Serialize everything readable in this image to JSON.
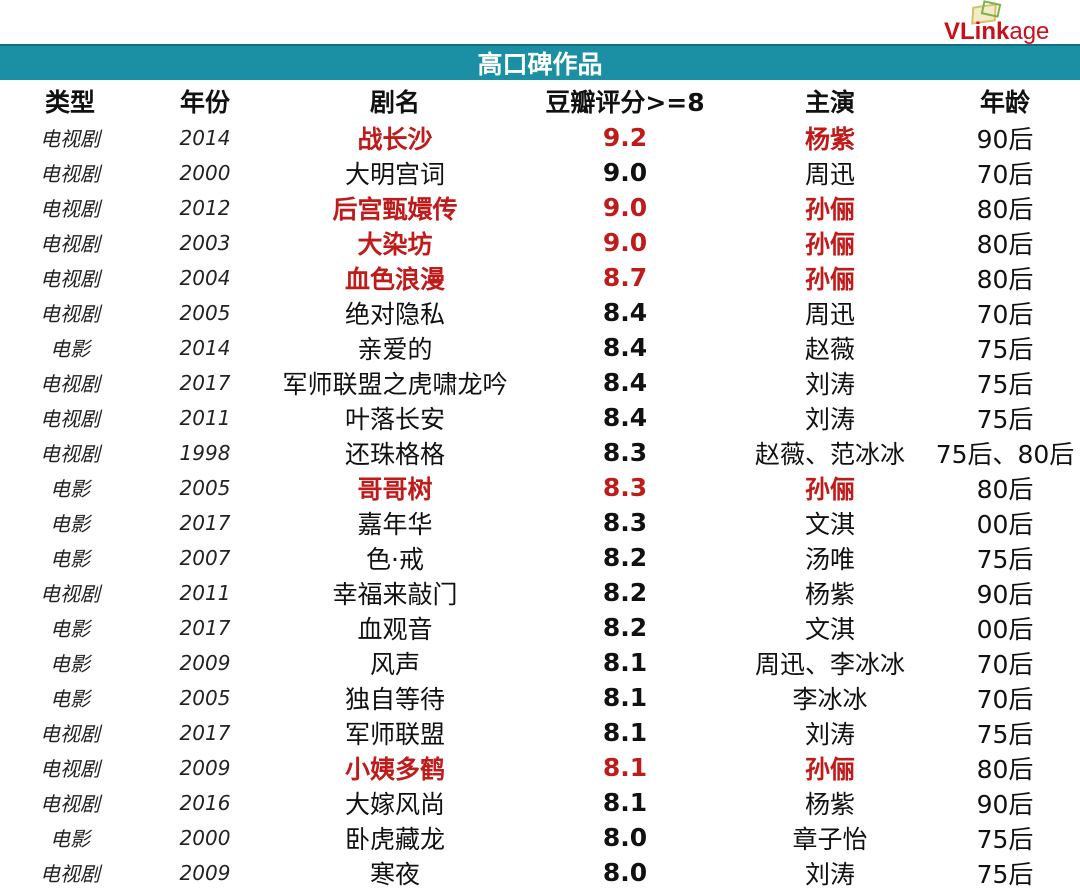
{
  "logo": {
    "text_bold": "VLink",
    "text_rest": "age"
  },
  "banner": {
    "title": "高口碑作品"
  },
  "columns": [
    "类型",
    "年份",
    "剧名",
    "豆瓣评分>=8",
    "主演",
    "年龄"
  ],
  "accent_color": "#c01b1b",
  "header_color": "#1b8fa3",
  "rows": [
    {
      "type": "电视剧",
      "year": "2014",
      "title": "战长沙",
      "score": "9.2",
      "cast": "杨紫",
      "age": "90后",
      "highlight": true
    },
    {
      "type": "电视剧",
      "year": "2000",
      "title": "大明宫词",
      "score": "9.0",
      "cast": "周迅",
      "age": "70后",
      "highlight": false
    },
    {
      "type": "电视剧",
      "year": "2012",
      "title": "后宫甄嬛传",
      "score": "9.0",
      "cast": "孙俪",
      "age": "80后",
      "highlight": true
    },
    {
      "type": "电视剧",
      "year": "2003",
      "title": "大染坊",
      "score": "9.0",
      "cast": "孙俪",
      "age": "80后",
      "highlight": true
    },
    {
      "type": "电视剧",
      "year": "2004",
      "title": "血色浪漫",
      "score": "8.7",
      "cast": "孙俪",
      "age": "80后",
      "highlight": true
    },
    {
      "type": "电视剧",
      "year": "2005",
      "title": "绝对隐私",
      "score": "8.4",
      "cast": "周迅",
      "age": "70后",
      "highlight": false
    },
    {
      "type": "电影",
      "year": "2014",
      "title": "亲爱的",
      "score": "8.4",
      "cast": "赵薇",
      "age": "75后",
      "highlight": false
    },
    {
      "type": "电视剧",
      "year": "2017",
      "title": "军师联盟之虎啸龙吟",
      "score": "8.4",
      "cast": "刘涛",
      "age": "75后",
      "highlight": false
    },
    {
      "type": "电视剧",
      "year": "2011",
      "title": "叶落长安",
      "score": "8.4",
      "cast": "刘涛",
      "age": "75后",
      "highlight": false
    },
    {
      "type": "电视剧",
      "year": "1998",
      "title": "还珠格格",
      "score": "8.3",
      "cast": "赵薇、范冰冰",
      "age": "75后、80后",
      "highlight": false
    },
    {
      "type": "电影",
      "year": "2005",
      "title": "哥哥树",
      "score": "8.3",
      "cast": "孙俪",
      "age": "80后",
      "highlight": true
    },
    {
      "type": "电影",
      "year": "2017",
      "title": "嘉年华",
      "score": "8.3",
      "cast": "文淇",
      "age": "00后",
      "highlight": false
    },
    {
      "type": "电影",
      "year": "2007",
      "title": "色·戒",
      "score": "8.2",
      "cast": "汤唯",
      "age": "75后",
      "highlight": false
    },
    {
      "type": "电视剧",
      "year": "2011",
      "title": "幸福来敲门",
      "score": "8.2",
      "cast": "杨紫",
      "age": "90后",
      "highlight": false
    },
    {
      "type": "电影",
      "year": "2017",
      "title": "血观音",
      "score": "8.2",
      "cast": "文淇",
      "age": "00后",
      "highlight": false
    },
    {
      "type": "电影",
      "year": "2009",
      "title": "风声",
      "score": "8.1",
      "cast": "周迅、李冰冰",
      "age": "70后",
      "highlight": false
    },
    {
      "type": "电影",
      "year": "2005",
      "title": "独自等待",
      "score": "8.1",
      "cast": "李冰冰",
      "age": "70后",
      "highlight": false
    },
    {
      "type": "电视剧",
      "year": "2017",
      "title": "军师联盟",
      "score": "8.1",
      "cast": "刘涛",
      "age": "75后",
      "highlight": false
    },
    {
      "type": "电视剧",
      "year": "2009",
      "title": "小姨多鹤",
      "score": "8.1",
      "cast": "孙俪",
      "age": "80后",
      "highlight": true
    },
    {
      "type": "电视剧",
      "year": "2016",
      "title": "大嫁风尚",
      "score": "8.1",
      "cast": "杨紫",
      "age": "90后",
      "highlight": false
    },
    {
      "type": "电影",
      "year": "2000",
      "title": "卧虎藏龙",
      "score": "8.0",
      "cast": "章子怡",
      "age": "75后",
      "highlight": false
    },
    {
      "type": "电视剧",
      "year": "2009",
      "title": "寒夜",
      "score": "8.0",
      "cast": "刘涛",
      "age": "75后",
      "highlight": false
    }
  ]
}
